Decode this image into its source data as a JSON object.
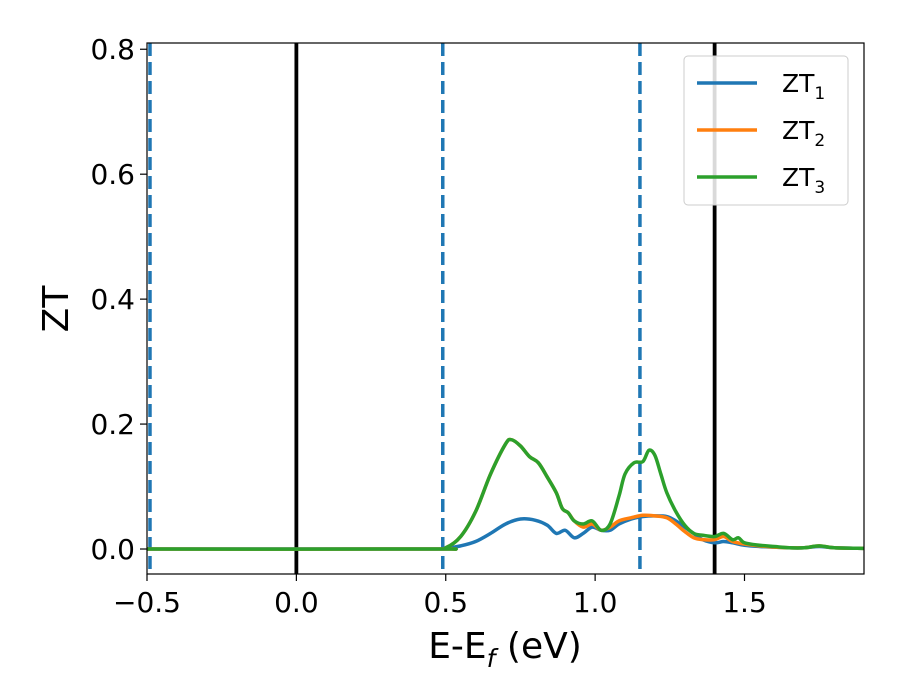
{
  "chart_data": {
    "type": "line",
    "xlabel": {
      "main": "E-E",
      "sub": "f",
      "unit": " (eV)"
    },
    "ylabel": "ZT",
    "xlim": [
      -0.5,
      1.9
    ],
    "ylim": [
      -0.04,
      0.81
    ],
    "xticks": [
      {
        "value": -0.5,
        "label": "−0.5"
      },
      {
        "value": 0.0,
        "label": "0.0"
      },
      {
        "value": 0.5,
        "label": "0.5"
      },
      {
        "value": 1.0,
        "label": "1.0"
      },
      {
        "value": 1.5,
        "label": "1.5"
      }
    ],
    "yticks": [
      {
        "value": 0.0,
        "label": "0.0"
      },
      {
        "value": 0.2,
        "label": "0.2"
      },
      {
        "value": 0.4,
        "label": "0.4"
      },
      {
        "value": 0.6,
        "label": "0.6"
      },
      {
        "value": 0.8,
        "label": "0.8"
      }
    ],
    "grid": false,
    "legend_position": "top-right",
    "vlines": [
      {
        "x": -0.49,
        "style": "dashed",
        "color": "#1f77b4"
      },
      {
        "x": 0.0,
        "style": "solid",
        "color": "#000000"
      },
      {
        "x": 0.49,
        "style": "dashed",
        "color": "#1f77b4"
      },
      {
        "x": 1.15,
        "style": "dashed",
        "color": "#1f77b4"
      },
      {
        "x": 1.4,
        "style": "solid",
        "color": "#000000"
      }
    ],
    "series": [
      {
        "name": "ZT",
        "sub": "1",
        "color": "#1f77b4",
        "points": [
          [
            -0.5,
            0.0
          ],
          [
            0.45,
            0.0
          ],
          [
            0.5,
            0.001
          ],
          [
            0.55,
            0.005
          ],
          [
            0.6,
            0.012
          ],
          [
            0.65,
            0.025
          ],
          [
            0.7,
            0.04
          ],
          [
            0.75,
            0.048
          ],
          [
            0.8,
            0.046
          ],
          [
            0.84,
            0.038
          ],
          [
            0.87,
            0.025
          ],
          [
            0.9,
            0.03
          ],
          [
            0.93,
            0.018
          ],
          [
            0.96,
            0.025
          ],
          [
            0.99,
            0.035
          ],
          [
            1.02,
            0.03
          ],
          [
            1.05,
            0.03
          ],
          [
            1.08,
            0.04
          ],
          [
            1.12,
            0.048
          ],
          [
            1.16,
            0.052
          ],
          [
            1.2,
            0.053
          ],
          [
            1.24,
            0.052
          ],
          [
            1.27,
            0.045
          ],
          [
            1.3,
            0.035
          ],
          [
            1.33,
            0.025
          ],
          [
            1.36,
            0.015
          ],
          [
            1.4,
            0.01
          ],
          [
            1.43,
            0.012
          ],
          [
            1.46,
            0.01
          ],
          [
            1.5,
            0.006
          ],
          [
            1.55,
            0.004
          ],
          [
            1.6,
            0.003
          ],
          [
            1.65,
            0.002
          ],
          [
            1.7,
            0.002
          ],
          [
            1.75,
            0.004
          ],
          [
            1.8,
            0.002
          ],
          [
            1.9,
            0.001
          ]
        ]
      },
      {
        "name": "ZT",
        "sub": "2",
        "color": "#ff7f0e",
        "points": [
          [
            -0.5,
            0.0
          ],
          [
            0.45,
            0.0
          ],
          [
            0.5,
            0.002
          ],
          [
            0.55,
            0.02
          ],
          [
            0.6,
            0.06
          ],
          [
            0.65,
            0.12
          ],
          [
            0.7,
            0.168
          ],
          [
            0.72,
            0.175
          ],
          [
            0.75,
            0.165
          ],
          [
            0.78,
            0.148
          ],
          [
            0.81,
            0.138
          ],
          [
            0.84,
            0.115
          ],
          [
            0.87,
            0.09
          ],
          [
            0.89,
            0.065
          ],
          [
            0.91,
            0.058
          ],
          [
            0.93,
            0.045
          ],
          [
            0.96,
            0.035
          ],
          [
            0.99,
            0.04
          ],
          [
            1.02,
            0.03
          ],
          [
            1.05,
            0.035
          ],
          [
            1.08,
            0.045
          ],
          [
            1.12,
            0.05
          ],
          [
            1.16,
            0.054
          ],
          [
            1.2,
            0.053
          ],
          [
            1.24,
            0.05
          ],
          [
            1.27,
            0.04
          ],
          [
            1.3,
            0.028
          ],
          [
            1.33,
            0.018
          ],
          [
            1.36,
            0.015
          ],
          [
            1.4,
            0.015
          ],
          [
            1.43,
            0.02
          ],
          [
            1.46,
            0.012
          ],
          [
            1.5,
            0.008
          ],
          [
            1.55,
            0.005
          ],
          [
            1.6,
            0.003
          ],
          [
            1.65,
            0.002
          ],
          [
            1.7,
            0.002
          ],
          [
            1.75,
            0.005
          ],
          [
            1.8,
            0.002
          ],
          [
            1.9,
            0.001
          ]
        ]
      },
      {
        "name": "ZT",
        "sub": "3",
        "color": "#2ca02c",
        "points": [
          [
            -0.5,
            0.0
          ],
          [
            0.45,
            0.0
          ],
          [
            0.5,
            0.002
          ],
          [
            0.55,
            0.02
          ],
          [
            0.6,
            0.06
          ],
          [
            0.65,
            0.12
          ],
          [
            0.7,
            0.168
          ],
          [
            0.72,
            0.175
          ],
          [
            0.75,
            0.165
          ],
          [
            0.78,
            0.148
          ],
          [
            0.81,
            0.138
          ],
          [
            0.84,
            0.115
          ],
          [
            0.87,
            0.09
          ],
          [
            0.89,
            0.065
          ],
          [
            0.91,
            0.058
          ],
          [
            0.93,
            0.045
          ],
          [
            0.96,
            0.04
          ],
          [
            0.99,
            0.045
          ],
          [
            1.02,
            0.03
          ],
          [
            1.05,
            0.04
          ],
          [
            1.08,
            0.085
          ],
          [
            1.1,
            0.12
          ],
          [
            1.13,
            0.138
          ],
          [
            1.16,
            0.14
          ],
          [
            1.18,
            0.158
          ],
          [
            1.2,
            0.15
          ],
          [
            1.22,
            0.12
          ],
          [
            1.24,
            0.09
          ],
          [
            1.27,
            0.06
          ],
          [
            1.3,
            0.038
          ],
          [
            1.33,
            0.025
          ],
          [
            1.36,
            0.022
          ],
          [
            1.4,
            0.02
          ],
          [
            1.43,
            0.025
          ],
          [
            1.46,
            0.015
          ],
          [
            1.48,
            0.018
          ],
          [
            1.5,
            0.01
          ],
          [
            1.55,
            0.006
          ],
          [
            1.6,
            0.004
          ],
          [
            1.65,
            0.002
          ],
          [
            1.7,
            0.002
          ],
          [
            1.75,
            0.005
          ],
          [
            1.8,
            0.002
          ],
          [
            1.9,
            0.001
          ]
        ]
      }
    ]
  }
}
